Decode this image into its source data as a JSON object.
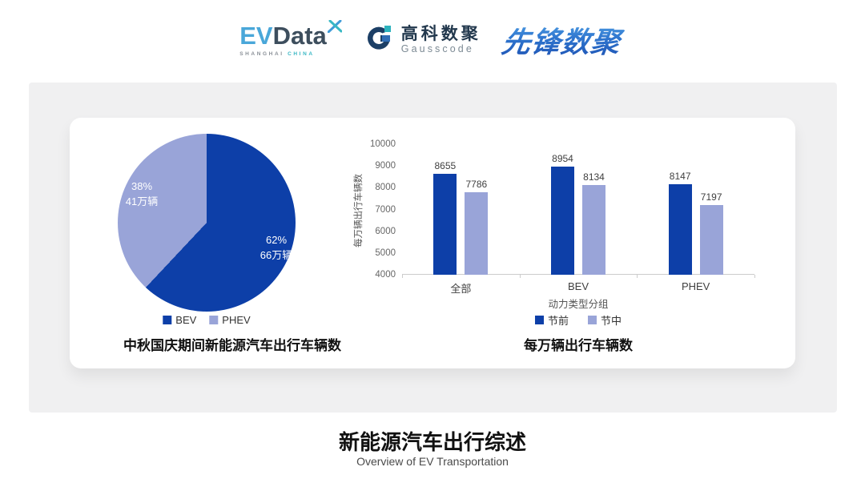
{
  "header": {
    "evdata": {
      "ev": "EV",
      "data": "Data",
      "sub_left": "SHANGHAI",
      "sub_right": "CHINA"
    },
    "gausscode": {
      "cn": "高科数聚",
      "en": "Gausscode"
    },
    "xianfeng": {
      "text": "先锋数聚"
    }
  },
  "colors": {
    "primary_blue": "#0d3fa8",
    "light_periwinkle": "#99a4d8",
    "panel_gray": "#f0f0f1"
  },
  "chart_data": [
    {
      "type": "pie",
      "title": "中秋国庆期间新能源汽车出行车辆数",
      "legend_position": "bottom",
      "start": "top",
      "direction": "clockwise",
      "slices": [
        {
          "label": "BEV",
          "percent": 62,
          "pct_label": "62%",
          "value_label": "66万辆",
          "color": "#0d3fa8"
        },
        {
          "label": "PHEV",
          "percent": 38,
          "pct_label": "38%",
          "value_label": "41万辆",
          "color": "#99a4d8"
        }
      ]
    },
    {
      "type": "bar",
      "title": "每万辆出行车辆数",
      "xlabel": "动力类型分组",
      "ylabel": "每万辆出行车辆数",
      "ylim": [
        4000,
        10000
      ],
      "yticks": [
        4000,
        5000,
        6000,
        7000,
        8000,
        9000,
        10000
      ],
      "grid": false,
      "legend_position": "bottom",
      "categories": [
        "全部",
        "BEV",
        "PHEV"
      ],
      "series": [
        {
          "name": "节前",
          "color": "#0d3fa8",
          "values": [
            8655,
            8954,
            8147
          ]
        },
        {
          "name": "节中",
          "color": "#99a4d8",
          "values": [
            7786,
            8134,
            7197
          ]
        }
      ]
    }
  ],
  "footer": {
    "title": "新能源汽车出行综述",
    "subtitle": "Overview of EV Transportation"
  }
}
